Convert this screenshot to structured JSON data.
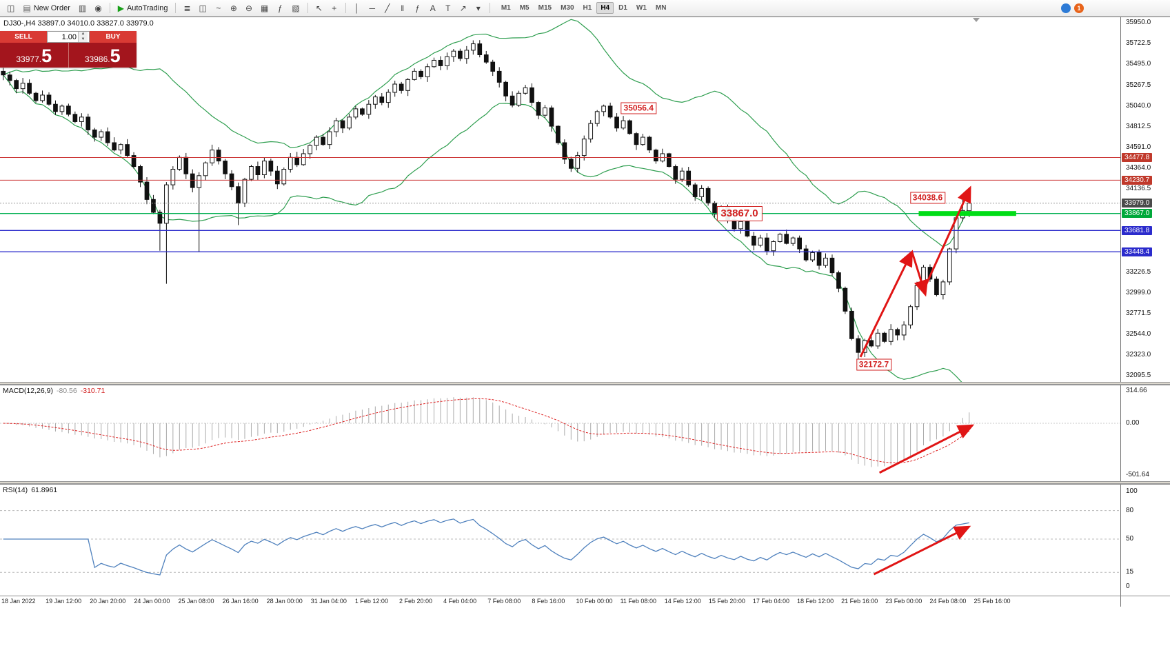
{
  "toolbar": {
    "new_order_label": "New Order",
    "autotrading_label": "AutoTrading",
    "timeframes": [
      "M1",
      "M5",
      "M15",
      "M30",
      "H1",
      "H4",
      "D1",
      "W1",
      "MN"
    ],
    "active_timeframe": "H4",
    "notification_count": "1",
    "glyphs": {
      "new_chart": "◫",
      "new_order": "▤",
      "market_watch": "▥",
      "navigator": "◉",
      "autotrading_play": "▶",
      "bars_chart": "≣",
      "candles_chart": "◫",
      "line_chart": "~",
      "zoom_in": "⊕",
      "zoom_out": "⊖",
      "tile_windows": "▦",
      "indicators": "ƒ",
      "templates": "▧",
      "cursor": "↖",
      "crosshair": "+",
      "vline": "│",
      "hline": "─",
      "trendline": "╱",
      "channel": "‖",
      "fibonacci": "ƒ",
      "text": "A",
      "label": "T",
      "arrows": "↗",
      "dropdown": "▾",
      "spinner_up": "▲",
      "spinner_down": "▼"
    }
  },
  "trade_panel": {
    "sell_label": "SELL",
    "buy_label": "BUY",
    "volume": "1.00",
    "sell_price_main": "33977.",
    "sell_price_big": "5",
    "buy_price_main": "33986.",
    "buy_price_big": "5"
  },
  "chart": {
    "symbol_info": "DJ30-,H4 33897.0 34010.0 33827.0 33979.0",
    "price_axis_ticks": [
      {
        "label": "35950.0",
        "value": 35950.0
      },
      {
        "label": "35722.5",
        "value": 35722.5
      },
      {
        "label": "35495.0",
        "value": 35495.0
      },
      {
        "label": "35267.5",
        "value": 35267.5
      },
      {
        "label": "35040.0",
        "value": 35040.0
      },
      {
        "label": "34812.5",
        "value": 34812.5
      },
      {
        "label": "34591.0",
        "value": 34591.0
      },
      {
        "label": "34364.0",
        "value": 34364.0
      },
      {
        "label": "34136.5",
        "value": 34136.5
      },
      {
        "label": "33226.5",
        "value": 33226.5
      },
      {
        "label": "32999.0",
        "value": 32999.0
      },
      {
        "label": "32771.5",
        "value": 32771.5
      },
      {
        "label": "32544.0",
        "value": 32544.0
      },
      {
        "label": "32323.0",
        "value": 32323.0
      },
      {
        "label": "32095.5",
        "value": 32095.5
      }
    ],
    "badges": [
      {
        "label": "34477.8",
        "value": 34477.8,
        "color": "#c0392b"
      },
      {
        "label": "34230.7",
        "value": 34230.7,
        "color": "#c0392b"
      },
      {
        "label": "33979.0",
        "value": 33979.0,
        "color": "#4a4a4a"
      },
      {
        "label": "33867.0",
        "value": 33867.0,
        "color": "#00a83a"
      },
      {
        "label": "33681.8",
        "value": 33681.8,
        "color": "#2b2bcc"
      },
      {
        "label": "33448.4",
        "value": 33448.4,
        "color": "#2b2bcc"
      }
    ],
    "time_axis": [
      "18 Jan 2022",
      "19 Jan 12:00",
      "20 Jan 20:00",
      "24 Jan 00:00",
      "25 Jan 08:00",
      "26 Jan 16:00",
      "28 Jan 00:00",
      "31 Jan 04:00",
      "1 Feb 12:00",
      "2 Feb 20:00",
      "4 Feb 04:00",
      "7 Feb 08:00",
      "8 Feb 16:00",
      "10 Feb 00:00",
      "11 Feb 08:00",
      "14 Feb 12:00",
      "15 Feb 20:00",
      "17 Feb 04:00",
      "18 Feb 12:00",
      "21 Feb 16:00",
      "23 Feb 00:00",
      "24 Feb 08:00",
      "25 Feb 16:00"
    ]
  },
  "chart_data": {
    "type": "candlestick",
    "symbol": "DJ30-",
    "timeframe": "H4",
    "last_candle": {
      "open": 33897.0,
      "high": 34010.0,
      "low": 33827.0,
      "close": 33979.0
    },
    "price_range": [
      32095.5,
      35950.0
    ],
    "closes": [
      35380,
      35320,
      35230,
      35290,
      35180,
      35100,
      35160,
      35060,
      34980,
      35040,
      34950,
      34870,
      34920,
      34780,
      34700,
      34760,
      34640,
      34560,
      34620,
      34500,
      34380,
      34210,
      34020,
      33880,
      33760,
      34180,
      34350,
      34480,
      34300,
      34150,
      34280,
      34420,
      34560,
      34440,
      34300,
      34160,
      33980,
      34240,
      34380,
      34290,
      34440,
      34330,
      34190,
      34350,
      34480,
      34400,
      34520,
      34610,
      34700,
      34620,
      34760,
      34880,
      34800,
      34920,
      35010,
      34950,
      35060,
      35140,
      35080,
      35190,
      35280,
      35210,
      35330,
      35420,
      35360,
      35470,
      35540,
      35480,
      35580,
      35640,
      35560,
      35650,
      35720,
      35600,
      35520,
      35420,
      35300,
      35150,
      35050,
      35180,
      35240,
      35080,
      34940,
      35020,
      34820,
      34640,
      34460,
      34360,
      34500,
      34680,
      34850,
      34980,
      35040,
      34920,
      34800,
      34880,
      34740,
      34620,
      34700,
      34560,
      34440,
      34520,
      34380,
      34240,
      34330,
      34180,
      34050,
      34140,
      33980,
      33860,
      33940,
      33800,
      33700,
      33780,
      33620,
      33520,
      33600,
      33460,
      33560,
      33640,
      33540,
      33600,
      33480,
      33360,
      33440,
      33300,
      33380,
      33220,
      33050,
      32800,
      32500,
      32350,
      32480,
      32420,
      32560,
      32470,
      32600,
      32540,
      32650,
      32850,
      33080,
      33280,
      33150,
      32980,
      33120,
      33480,
      33820,
      33900,
      33979
    ],
    "wick_overrides": {
      "24": {
        "low": 33460
      },
      "25": {
        "low": 33100
      },
      "30": {
        "low": 33450
      },
      "36": {
        "low": 33740
      },
      "72": {
        "high": 35758
      },
      "92": {
        "high": 35056.4
      },
      "131": {
        "low": 32172.7
      },
      "147": {
        "high": 34038.6
      },
      "148": {
        "open": 33897.0,
        "high": 34010.0,
        "low": 33827.0,
        "close": 33979.0
      }
    },
    "bollinger": {
      "period": 20,
      "deviation": 2
    },
    "levels": [
      {
        "value": 34477.8,
        "color": "#cc3333",
        "width": 1,
        "dash": ""
      },
      {
        "value": 34230.7,
        "color": "#cc3333",
        "width": 1,
        "dash": ""
      },
      {
        "value": 33979.0,
        "color": "#999999",
        "width": 1,
        "dash": "2,2"
      },
      {
        "value": 33867.0,
        "color": "#00b050",
        "width": 1.4,
        "dash": ""
      },
      {
        "value": 33681.8,
        "color": "#2b2bcc",
        "width": 1.4,
        "dash": ""
      },
      {
        "value": 33448.4,
        "color": "#2b2bcc",
        "width": 1.4,
        "dash": ""
      }
    ],
    "green_zone": {
      "price": 33867.0,
      "x1_pct": 82,
      "x2_pct": 90.7
    },
    "boxed_labels": [
      {
        "text": "35056.4",
        "x_pct": 57,
        "price": 35020,
        "size": "normal"
      },
      {
        "text": "33867.0",
        "x_pct": 66,
        "price": 33867,
        "size": "large"
      },
      {
        "text": "34038.6",
        "x_pct": 82.8,
        "price": 34035,
        "size": "normal"
      },
      {
        "text": "32172.7",
        "x_pct": 78,
        "price": 32215,
        "size": "normal"
      }
    ],
    "arrows_main": [
      {
        "x1_pct": 76.8,
        "p1": 32300,
        "x2_pct": 81.4,
        "p2": 33450
      },
      {
        "x1_pct": 81.4,
        "p1": 33450,
        "x2_pct": 82.6,
        "p2": 32980
      },
      {
        "x1_pct": 82.4,
        "p1": 33020,
        "x2_pct": 86.6,
        "p2": 34150
      }
    ],
    "colors": {
      "bollinger": "#2e9e4f",
      "bull": "#ffffff",
      "bear": "#111111",
      "macd_hist": "#aaaaaa",
      "macd_signal": "#dd2222",
      "rsi_line": "#4f81bd",
      "arrow": "#e01515",
      "zone": "#00dd16"
    },
    "indicators": {
      "macd": {
        "label": "MACD(12,26,9)",
        "value_main": "-80.56",
        "value_signal": "-310.71",
        "params": {
          "fast": 12,
          "slow": 26,
          "signal": 9
        },
        "axis": [
          {
            "label": "314.66",
            "value": 314.66
          },
          {
            "label": "0.00",
            "value": 0
          },
          {
            "label": "-501.64",
            "value": -501.64
          }
        ],
        "arrow": {
          "x1_pct": 78.5,
          "v1": -480,
          "x2_pct": 86.8,
          "v2": -20
        }
      },
      "rsi": {
        "label": "RSI(14)",
        "value": "61.8961",
        "period": 14,
        "axis": [
          {
            "label": "100",
            "value": 100
          },
          {
            "label": "80",
            "value": 80
          },
          {
            "label": "50",
            "value": 50
          },
          {
            "label": "15",
            "value": 15
          },
          {
            "label": "0",
            "value": 0
          }
        ],
        "levels": [
          80,
          50,
          15
        ],
        "arrow": {
          "x1_pct": 78,
          "v1": 13,
          "x2_pct": 86.5,
          "v2": 63
        }
      }
    }
  }
}
